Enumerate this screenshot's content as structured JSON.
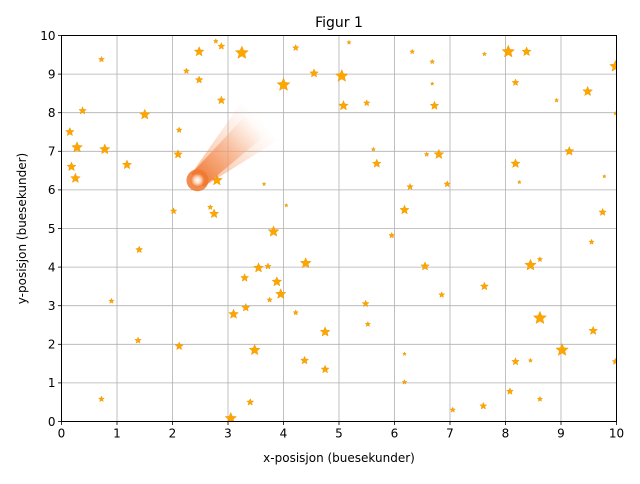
{
  "chart_data": {
    "type": "scatter",
    "title": "Figur 1",
    "xlabel": "x-posisjon (buesekunder)",
    "ylabel": "y-posisjon (buesekunder)",
    "xlim": [
      0,
      10
    ],
    "ylim": [
      0,
      10
    ],
    "xticks": [
      0,
      1,
      2,
      3,
      4,
      5,
      6,
      7,
      8,
      9,
      10
    ],
    "yticks": [
      0,
      1,
      2,
      3,
      4,
      5,
      6,
      7,
      8,
      9,
      10
    ],
    "grid": true,
    "marker": "star",
    "star_color": "#FFA500",
    "comet_color": "#F07830",
    "comet": {
      "head": [
        2.45,
        6.25
      ],
      "tail_end": [
        3.55,
        7.75
      ]
    },
    "stars": [
      {
        "x": 0.72,
        "y": 9.38,
        "m": 0.25
      },
      {
        "x": 2.48,
        "y": 9.58,
        "m": 0.6
      },
      {
        "x": 2.78,
        "y": 9.85,
        "m": 0.15
      },
      {
        "x": 2.88,
        "y": 9.72,
        "m": 0.35
      },
      {
        "x": 3.25,
        "y": 9.55,
        "m": 0.9
      },
      {
        "x": 4.22,
        "y": 9.68,
        "m": 0.3
      },
      {
        "x": 5.18,
        "y": 9.82,
        "m": 0.1
      },
      {
        "x": 6.32,
        "y": 9.58,
        "m": 0.15
      },
      {
        "x": 7.62,
        "y": 9.52,
        "m": 0.1
      },
      {
        "x": 8.05,
        "y": 9.58,
        "m": 0.85
      },
      {
        "x": 8.38,
        "y": 9.58,
        "m": 0.55
      },
      {
        "x": 9.98,
        "y": 9.2,
        "m": 0.75
      },
      {
        "x": 2.25,
        "y": 9.08,
        "m": 0.25
      },
      {
        "x": 2.48,
        "y": 8.85,
        "m": 0.4
      },
      {
        "x": 4.55,
        "y": 9.02,
        "m": 0.5
      },
      {
        "x": 5.05,
        "y": 8.95,
        "m": 0.85
      },
      {
        "x": 6.68,
        "y": 9.32,
        "m": 0.15
      },
      {
        "x": 6.68,
        "y": 8.75,
        "m": 0.05
      },
      {
        "x": 8.18,
        "y": 8.78,
        "m": 0.35
      },
      {
        "x": 8.92,
        "y": 8.32,
        "m": 0.1
      },
      {
        "x": 9.48,
        "y": 8.55,
        "m": 0.6
      },
      {
        "x": 2.88,
        "y": 8.32,
        "m": 0.45
      },
      {
        "x": 4.0,
        "y": 8.72,
        "m": 0.9
      },
      {
        "x": 5.08,
        "y": 8.18,
        "m": 0.6
      },
      {
        "x": 5.5,
        "y": 8.25,
        "m": 0.3
      },
      {
        "x": 6.72,
        "y": 8.18,
        "m": 0.5
      },
      {
        "x": 9.98,
        "y": 7.98,
        "m": 0.05
      },
      {
        "x": 0.38,
        "y": 8.05,
        "m": 0.4
      },
      {
        "x": 1.5,
        "y": 7.95,
        "m": 0.65
      },
      {
        "x": 0.15,
        "y": 7.5,
        "m": 0.5
      },
      {
        "x": 2.12,
        "y": 7.55,
        "m": 0.25
      },
      {
        "x": 0.28,
        "y": 7.1,
        "m": 0.7
      },
      {
        "x": 0.78,
        "y": 7.05,
        "m": 0.65
      },
      {
        "x": 0.18,
        "y": 6.6,
        "m": 0.55
      },
      {
        "x": 1.18,
        "y": 6.65,
        "m": 0.55
      },
      {
        "x": 0.25,
        "y": 6.3,
        "m": 0.6
      },
      {
        "x": 2.1,
        "y": 6.92,
        "m": 0.5
      },
      {
        "x": 2.8,
        "y": 6.25,
        "m": 0.7
      },
      {
        "x": 3.65,
        "y": 6.15,
        "m": 0.05
      },
      {
        "x": 4.05,
        "y": 5.6,
        "m": 0.05
      },
      {
        "x": 2.68,
        "y": 5.55,
        "m": 0.2
      },
      {
        "x": 2.75,
        "y": 5.38,
        "m": 0.55
      },
      {
        "x": 2.02,
        "y": 5.45,
        "m": 0.3
      },
      {
        "x": 5.62,
        "y": 7.05,
        "m": 0.1
      },
      {
        "x": 5.68,
        "y": 6.68,
        "m": 0.5
      },
      {
        "x": 6.58,
        "y": 6.92,
        "m": 0.15
      },
      {
        "x": 6.8,
        "y": 6.92,
        "m": 0.6
      },
      {
        "x": 6.28,
        "y": 6.08,
        "m": 0.3
      },
      {
        "x": 6.95,
        "y": 6.15,
        "m": 0.3
      },
      {
        "x": 6.18,
        "y": 5.48,
        "m": 0.55
      },
      {
        "x": 8.18,
        "y": 6.68,
        "m": 0.55
      },
      {
        "x": 8.25,
        "y": 6.2,
        "m": 0.05
      },
      {
        "x": 9.15,
        "y": 7.0,
        "m": 0.55
      },
      {
        "x": 9.78,
        "y": 6.35,
        "m": 0.05
      },
      {
        "x": 9.75,
        "y": 5.42,
        "m": 0.4
      },
      {
        "x": 3.82,
        "y": 4.92,
        "m": 0.7
      },
      {
        "x": 5.95,
        "y": 4.82,
        "m": 0.25
      },
      {
        "x": 1.4,
        "y": 4.45,
        "m": 0.35
      },
      {
        "x": 3.55,
        "y": 3.98,
        "m": 0.6
      },
      {
        "x": 3.72,
        "y": 4.02,
        "m": 0.3
      },
      {
        "x": 4.4,
        "y": 4.1,
        "m": 0.7
      },
      {
        "x": 6.55,
        "y": 4.02,
        "m": 0.5
      },
      {
        "x": 8.45,
        "y": 4.05,
        "m": 0.75
      },
      {
        "x": 8.62,
        "y": 4.2,
        "m": 0.2
      },
      {
        "x": 9.55,
        "y": 4.65,
        "m": 0.2
      },
      {
        "x": 3.3,
        "y": 3.72,
        "m": 0.45
      },
      {
        "x": 3.88,
        "y": 3.62,
        "m": 0.6
      },
      {
        "x": 3.95,
        "y": 3.3,
        "m": 0.65
      },
      {
        "x": 3.75,
        "y": 3.15,
        "m": 0.2
      },
      {
        "x": 0.9,
        "y": 3.12,
        "m": 0.2
      },
      {
        "x": 3.1,
        "y": 2.78,
        "m": 0.6
      },
      {
        "x": 3.32,
        "y": 2.95,
        "m": 0.45
      },
      {
        "x": 4.22,
        "y": 2.82,
        "m": 0.2
      },
      {
        "x": 5.48,
        "y": 3.05,
        "m": 0.35
      },
      {
        "x": 5.52,
        "y": 2.52,
        "m": 0.2
      },
      {
        "x": 6.85,
        "y": 3.28,
        "m": 0.25
      },
      {
        "x": 7.62,
        "y": 3.5,
        "m": 0.45
      },
      {
        "x": 8.62,
        "y": 2.68,
        "m": 0.9
      },
      {
        "x": 9.58,
        "y": 2.35,
        "m": 0.5
      },
      {
        "x": 1.38,
        "y": 2.1,
        "m": 0.3
      },
      {
        "x": 2.12,
        "y": 1.95,
        "m": 0.45
      },
      {
        "x": 3.48,
        "y": 1.85,
        "m": 0.7
      },
      {
        "x": 4.75,
        "y": 2.32,
        "m": 0.6
      },
      {
        "x": 4.38,
        "y": 1.58,
        "m": 0.45
      },
      {
        "x": 4.75,
        "y": 1.35,
        "m": 0.45
      },
      {
        "x": 6.18,
        "y": 1.75,
        "m": 0.05
      },
      {
        "x": 8.18,
        "y": 1.55,
        "m": 0.4
      },
      {
        "x": 8.45,
        "y": 1.58,
        "m": 0.1
      },
      {
        "x": 9.02,
        "y": 1.85,
        "m": 0.85
      },
      {
        "x": 9.98,
        "y": 1.55,
        "m": 0.3
      },
      {
        "x": 6.18,
        "y": 1.02,
        "m": 0.15
      },
      {
        "x": 8.08,
        "y": 0.78,
        "m": 0.35
      },
      {
        "x": 0.72,
        "y": 0.58,
        "m": 0.25
      },
      {
        "x": 3.4,
        "y": 0.5,
        "m": 0.35
      },
      {
        "x": 3.05,
        "y": 0.08,
        "m": 0.75
      },
      {
        "x": 7.05,
        "y": 0.3,
        "m": 0.2
      },
      {
        "x": 7.6,
        "y": 0.4,
        "m": 0.35
      },
      {
        "x": 8.62,
        "y": 0.58,
        "m": 0.2
      }
    ]
  }
}
